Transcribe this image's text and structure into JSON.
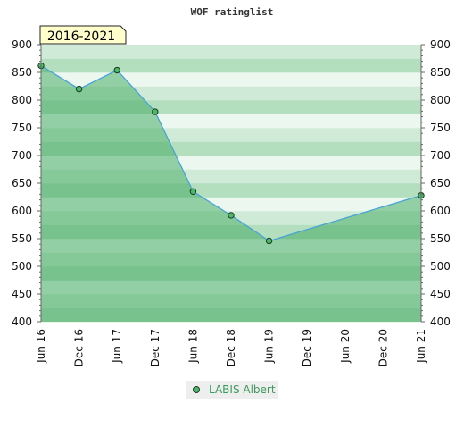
{
  "title": "WOF ratinglist",
  "period_badge": "2016-2021",
  "colors": {
    "band_dark": [
      "#78c38d",
      "#86c999",
      "#93cfa4"
    ],
    "band_light": [
      "#b3dfbf",
      "#cfebd7",
      "#ebf7ef"
    ],
    "line": "#4aa3d6",
    "marker_fill": "#4db86a",
    "marker_stroke": "#1a3a20",
    "badge_fill": "#ffffcc",
    "legend_bg": "#eeeeee",
    "legend_text": "#3a9a5a"
  },
  "chart_data": {
    "type": "area",
    "title": "WOF ratinglist",
    "x_ticks": [
      "Jun 16",
      "Dec 16",
      "Jun 17",
      "Dec 17",
      "Jun 18",
      "Dec 18",
      "Jun 19",
      "Dec 19",
      "Jun 20",
      "Dec 20",
      "Jun 21"
    ],
    "y_ticks": [
      400,
      450,
      500,
      550,
      600,
      650,
      700,
      750,
      800,
      850,
      900
    ],
    "ylim": [
      400,
      900
    ],
    "y_axis_both_sides": true,
    "series": [
      {
        "name": "LABIS Albert",
        "points": [
          {
            "x": "Jun 16",
            "y": 862
          },
          {
            "x": "Dec 16",
            "y": 820
          },
          {
            "x": "Jun 17",
            "y": 854
          },
          {
            "x": "Dec 17",
            "y": 779
          },
          {
            "x": "Jun 18",
            "y": 635
          },
          {
            "x": "Dec 18",
            "y": 592
          },
          {
            "x": "Jun 19",
            "y": 546
          },
          {
            "x": "Jun 21",
            "y": 628
          }
        ]
      }
    ],
    "legend_position": "bottom-center"
  }
}
